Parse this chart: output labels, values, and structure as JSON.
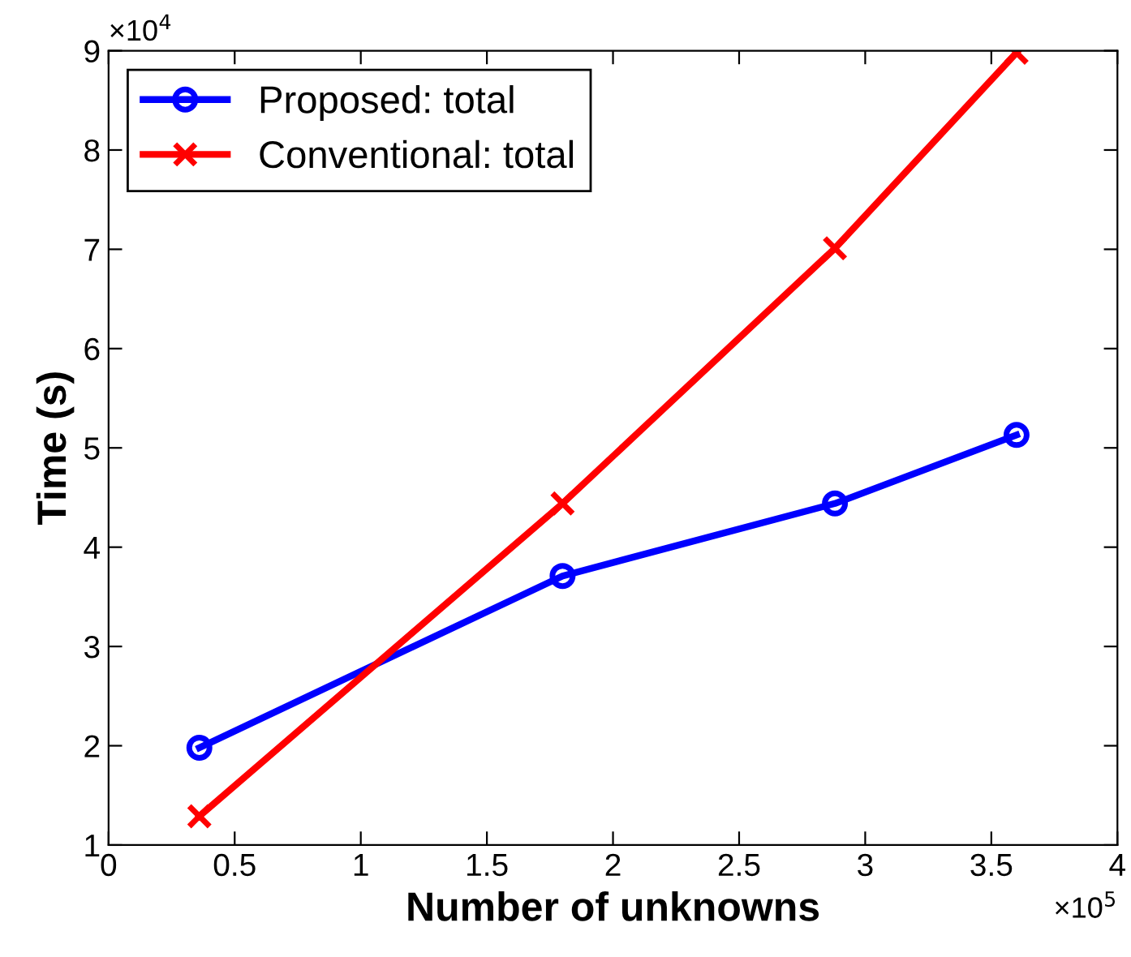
{
  "chart_data": {
    "type": "line",
    "xlabel": "Number of unknowns",
    "ylabel": "Time (s)",
    "x": [
      0.36,
      1.8,
      2.88,
      3.6
    ],
    "series": [
      {
        "name": "Proposed: total",
        "color": "#0000ff",
        "marker": "circle",
        "values": [
          1.98,
          3.71,
          4.44,
          5.13
        ]
      },
      {
        "name": "Conventional: total",
        "color": "#ff0000",
        "marker": "cross",
        "values": [
          1.29,
          4.44,
          7.01,
          8.98
        ]
      }
    ],
    "xlim": [
      0,
      4
    ],
    "xticks": [
      0,
      0.5,
      1,
      1.5,
      2,
      2.5,
      3,
      3.5,
      4
    ],
    "ylim": [
      1,
      9
    ],
    "yticks": [
      1,
      2,
      3,
      4,
      5,
      6,
      7,
      8,
      9
    ],
    "annotations": [
      "×10$^{4}$",
      "×10$^{5}$"
    ],
    "legend": "top left",
    "grid": false,
    "line_style": "solid"
  }
}
